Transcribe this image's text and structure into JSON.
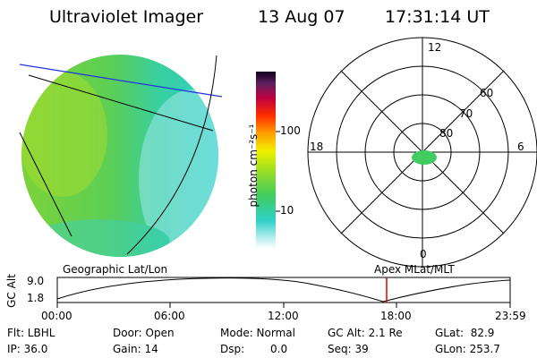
{
  "header": {
    "instrument": "Ultraviolet Imager",
    "date": "13 Aug 07",
    "time": "17:31:14 UT"
  },
  "colorbar": {
    "unit": "photon cm⁻²s⁻¹",
    "tick_100": "100",
    "tick_10": "10"
  },
  "polar": {
    "mlt_top": "12",
    "mlt_left": "18",
    "mlt_right": "6",
    "mlt_bottom": "0",
    "lat_60": "60",
    "lat_70": "70",
    "lat_80": "80"
  },
  "panels": {
    "left_label": "Geographic Lat/Lon",
    "right_label": "Apex MLat/MLT"
  },
  "orbit": {
    "ylabel": "GC Alt",
    "ytick_top": "9.0",
    "ytick_bottom": "1.8",
    "xticks": [
      "00:00",
      "06:00",
      "12:00",
      "18:00",
      "23:59"
    ]
  },
  "info": {
    "flt": "Flt: LBHL",
    "ip": "IP: 36.0",
    "door": "Door: Open",
    "gain": "Gain: 14",
    "mode": "Mode: Normal",
    "dsp_label": "Dsp:",
    "dsp_value": "0.0",
    "gcalt": "GC Alt: 2.1 Re",
    "seq": "Seq: 39",
    "glat": "GLat:  82.9",
    "glon": "GLon: 253.7"
  }
}
